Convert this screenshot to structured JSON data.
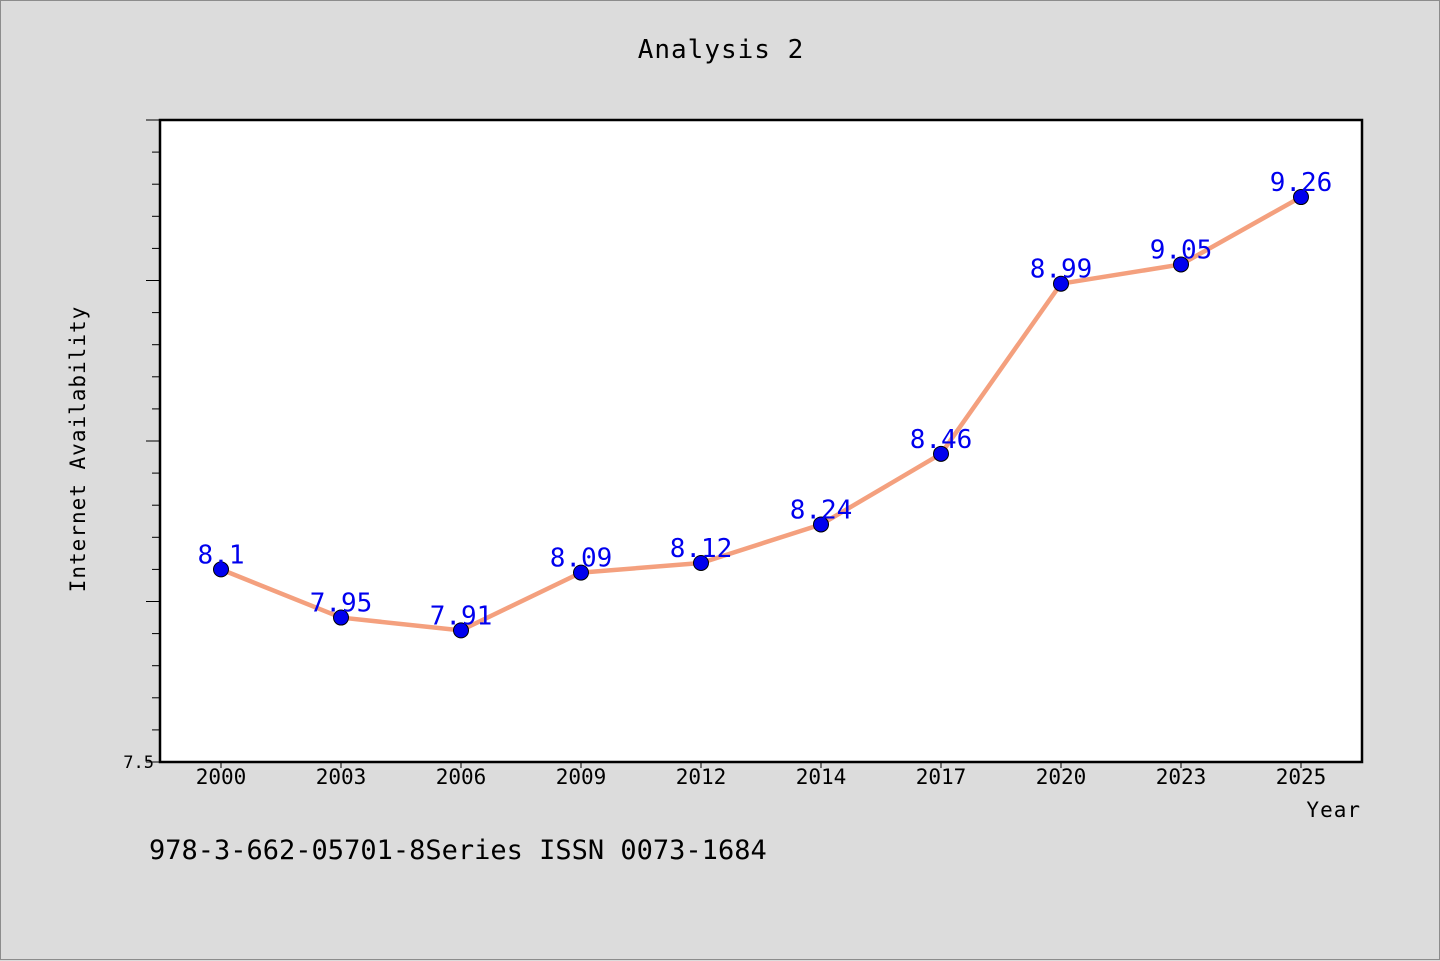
{
  "title": "Analysis 2",
  "footer_note": "978-3-662-05701-8Series ISSN 0073-1684",
  "colors": {
    "background": "#dcdcdc",
    "plot_area": "#ffffff",
    "line": "#f4a07e",
    "marker": "#0000ee",
    "data_label": "#0000ee"
  },
  "chart_data": {
    "type": "line",
    "categories": [
      "2000",
      "2003",
      "2006",
      "2009",
      "2012",
      "2014",
      "2017",
      "2020",
      "2023",
      "2025"
    ],
    "series": [
      {
        "values": [
          8.1,
          7.95,
          7.91,
          8.09,
          8.12,
          8.24,
          8.46,
          8.99,
          9.05,
          9.26
        ]
      }
    ],
    "data_labels": [
      "8.1",
      "7.95",
      "7.91",
      "8.09",
      "8.12",
      "8.24",
      "8.46",
      "8.99",
      "9.05",
      "9.26"
    ],
    "xlabel": "Year",
    "ylabel": "Internet Availability",
    "ylim": [
      7.5,
      9.5
    ],
    "yticks_labeled": [
      "7.5"
    ],
    "y_minor_step": 0.1,
    "y_major_step": 0.5,
    "grid": false,
    "legend": "none"
  }
}
